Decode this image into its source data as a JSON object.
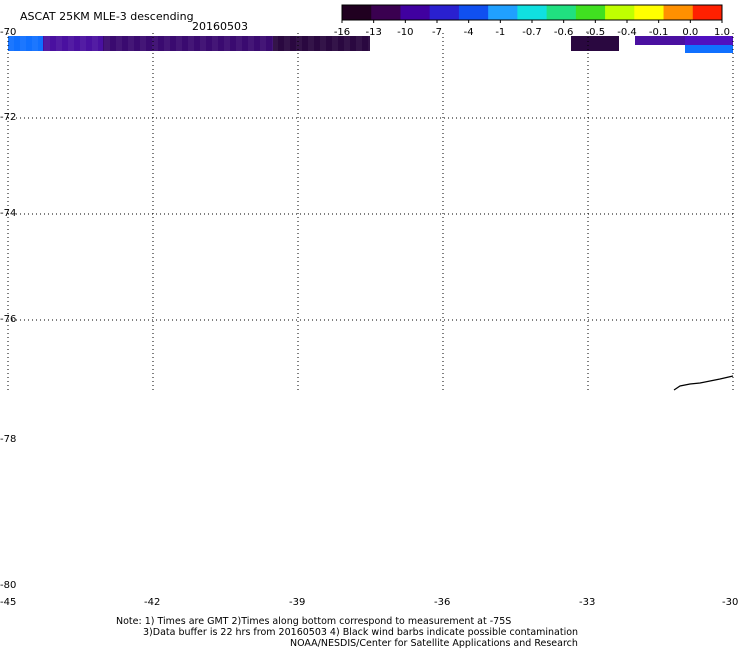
{
  "header": {
    "title": "ASCAT 25KM MLE-3 descending",
    "date": "20160503"
  },
  "colorbar": {
    "ticks": [
      "-16",
      "-13",
      "-10",
      "-7",
      "-4",
      "-1",
      "-0.7",
      "-0.6",
      "-0.5",
      "-0.4",
      "-0.1",
      "0.0",
      "1.0"
    ],
    "colors": [
      "#200020",
      "#3a0050",
      "#4000a0",
      "#2a20d0",
      "#1050f0",
      "#20a0ff",
      "#10e0e0",
      "#20e080",
      "#40e020",
      "#c0ff00",
      "#ffff00",
      "#ff9000",
      "#ff2000"
    ]
  },
  "map": {
    "lat_labels": [
      "-70",
      "-72",
      "-74",
      "-76",
      "-78",
      "-80"
    ],
    "lon_labels": [
      "-45",
      "-42",
      "-39",
      "-36",
      "-33",
      "-30"
    ],
    "lat_range": [
      -70,
      -80
    ],
    "lon_range": [
      -45,
      -30
    ],
    "swath_colors": {
      "dark_purple": "#2a0840",
      "purple": "#4a10a0",
      "blue": "#1070ff",
      "mid_blue": "#2040e0"
    }
  },
  "notes": [
    "Note: 1) Times are GMT 2)Times along bottom correspond to measurement at -75S",
    "3)Data buffer is 22 hrs from 20160503 4) Black wind barbs indicate possible contamination",
    "NOAA/NESDIS/Center for Satellite Applications and Research"
  ]
}
